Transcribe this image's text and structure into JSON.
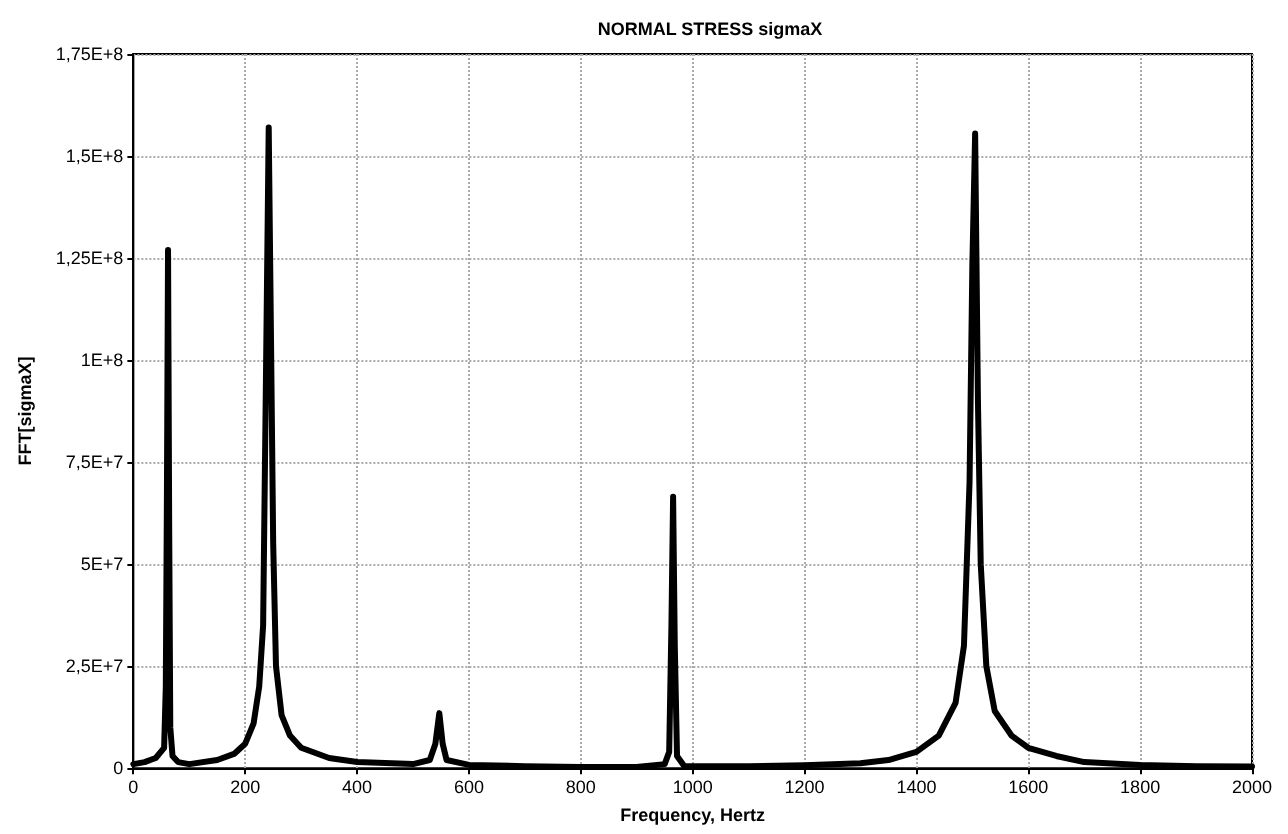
{
  "chart_data": {
    "type": "line",
    "title": "NORMAL STRESS sigmaX",
    "xlabel": "Frequency, Hertz",
    "ylabel": "FFT[sigmaX]",
    "x": [
      0,
      20,
      40,
      55,
      58,
      60,
      62,
      64,
      66,
      70,
      80,
      100,
      150,
      180,
      200,
      215,
      225,
      232,
      237,
      242,
      246,
      250,
      255,
      265,
      280,
      300,
      350,
      400,
      500,
      530,
      540,
      547,
      553,
      560,
      600,
      700,
      800,
      900,
      950,
      958,
      962,
      965,
      968,
      972,
      985,
      1100,
      1200,
      1300,
      1350,
      1400,
      1440,
      1470,
      1485,
      1495,
      1500,
      1505,
      1510,
      1515,
      1525,
      1540,
      1570,
      1600,
      1650,
      1700,
      1800,
      1900,
      2000
    ],
    "series": [
      {
        "color": "#000000",
        "values": [
          1000000,
          1500000,
          2500000,
          5000000,
          20000000,
          67000000,
          127000000,
          60000000,
          10000000,
          3000000,
          1500000,
          1000000,
          2000000,
          3500000,
          6000000,
          11000000,
          20000000,
          35000000,
          95000000,
          157000000,
          106000000,
          55000000,
          25000000,
          13000000,
          8000000,
          5000000,
          2500000,
          1500000,
          1000000,
          2000000,
          6000000,
          13500000,
          6000000,
          2000000,
          800000,
          500000,
          300000,
          300000,
          1000000,
          4000000,
          35000000,
          66500000,
          30000000,
          3000000,
          500000,
          500000,
          700000,
          1200000,
          2000000,
          4000000,
          8000000,
          16000000,
          30000000,
          70000000,
          123000000,
          155500000,
          90000000,
          50000000,
          25000000,
          14000000,
          8000000,
          5000000,
          3000000,
          1500000,
          800000,
          500000,
          400000
        ]
      }
    ],
    "xlim": [
      0,
      2000
    ],
    "xticks": [
      0,
      200,
      400,
      600,
      800,
      1000,
      1200,
      1400,
      1600,
      1800,
      2000
    ],
    "ylim": [
      0,
      175000000
    ],
    "yticks": [
      {
        "value": 0,
        "label": "0"
      },
      {
        "value": 25000000,
        "label": "2,5E+7"
      },
      {
        "value": 50000000,
        "label": "5E+7"
      },
      {
        "value": 75000000,
        "label": "7,5E+7"
      },
      {
        "value": 100000000,
        "label": "1E+8"
      },
      {
        "value": 125000000,
        "label": "1,25E+8"
      },
      {
        "value": 150000000,
        "label": "1,5E+8"
      },
      {
        "value": 175000000,
        "label": "1,75E+8"
      }
    ],
    "grid": true,
    "marker": "none",
    "line_style": "solid"
  }
}
